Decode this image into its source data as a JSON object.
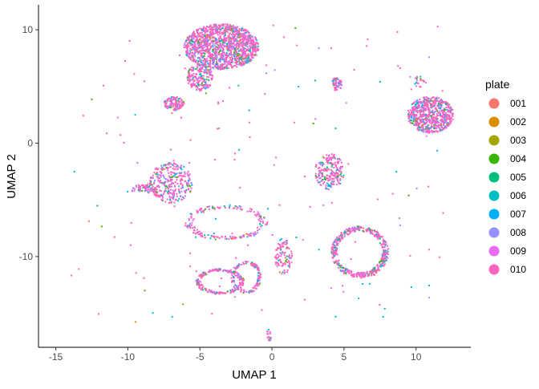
{
  "chart_data": {
    "type": "scatter",
    "title": "",
    "xlabel": "UMAP 1",
    "ylabel": "UMAP 2",
    "xlim": [
      -16.2,
      13.8
    ],
    "ylim": [
      -18.0,
      12.2
    ],
    "x_ticks": [
      -15,
      -10,
      -5,
      0,
      5,
      10
    ],
    "x_tick_labels": [
      "-15",
      "-10",
      "-5",
      "0",
      "5",
      "10"
    ],
    "y_ticks": [
      -10,
      0,
      10
    ],
    "y_tick_labels": [
      "-10",
      "0",
      "10"
    ],
    "grid": false,
    "legend_position": "right",
    "legend": {
      "title": "plate",
      "entries": [
        {
          "label": "001",
          "color": "#F8766D"
        },
        {
          "label": "002",
          "color": "#D89000"
        },
        {
          "label": "003",
          "color": "#A3A500"
        },
        {
          "label": "004",
          "color": "#39B600"
        },
        {
          "label": "005",
          "color": "#00BF7D"
        },
        {
          "label": "006",
          "color": "#00BFC4"
        },
        {
          "label": "007",
          "color": "#00B0F6"
        },
        {
          "label": "008",
          "color": "#9590FF"
        },
        {
          "label": "009",
          "color": "#E76BF3"
        },
        {
          "label": "010",
          "color": "#FF62BC"
        }
      ]
    },
    "clusters": [
      {
        "cx": -3.5,
        "cy": 8.5,
        "rx": 2.6,
        "ry": 2.0,
        "n": 1400,
        "shape": "blob"
      },
      {
        "cx": -5.0,
        "cy": 5.8,
        "rx": 0.9,
        "ry": 1.2,
        "n": 200,
        "shape": "blob"
      },
      {
        "cx": -6.8,
        "cy": 3.5,
        "rx": 0.7,
        "ry": 0.6,
        "n": 140,
        "shape": "blob"
      },
      {
        "cx": 11.0,
        "cy": 2.5,
        "rx": 1.6,
        "ry": 1.6,
        "n": 700,
        "shape": "blob"
      },
      {
        "cx": 4.5,
        "cy": 5.2,
        "rx": 0.35,
        "ry": 0.6,
        "n": 60,
        "shape": "blob"
      },
      {
        "cx": -7.0,
        "cy": -3.5,
        "rx": 1.5,
        "ry": 1.8,
        "n": 320,
        "shape": "blob"
      },
      {
        "cx": -8.8,
        "cy": -4.0,
        "rx": 1.0,
        "ry": 0.4,
        "n": 70,
        "shape": "blob"
      },
      {
        "cx": 4.0,
        "cy": -2.5,
        "rx": 1.0,
        "ry": 1.6,
        "n": 220,
        "shape": "blob"
      },
      {
        "cx": 6.1,
        "cy": -9.6,
        "rx": 1.9,
        "ry": 2.2,
        "n": 480,
        "shape": "ring"
      },
      {
        "cx": -3.6,
        "cy": -12.2,
        "rx": 1.6,
        "ry": 1.1,
        "n": 220,
        "shape": "ring"
      },
      {
        "cx": -1.8,
        "cy": -11.8,
        "rx": 1.0,
        "ry": 1.4,
        "n": 140,
        "shape": "ring"
      },
      {
        "cx": 0.8,
        "cy": -10.0,
        "rx": 0.6,
        "ry": 1.6,
        "n": 100,
        "shape": "blob"
      },
      {
        "cx": -3.2,
        "cy": -7.0,
        "rx": 2.8,
        "ry": 1.5,
        "n": 180,
        "shape": "ring"
      },
      {
        "cx": -0.2,
        "cy": -17.0,
        "rx": 0.2,
        "ry": 0.6,
        "n": 18,
        "shape": "blob"
      },
      {
        "cx": 10.3,
        "cy": 5.4,
        "rx": 0.4,
        "ry": 0.6,
        "n": 20,
        "shape": "blob"
      }
    ]
  }
}
